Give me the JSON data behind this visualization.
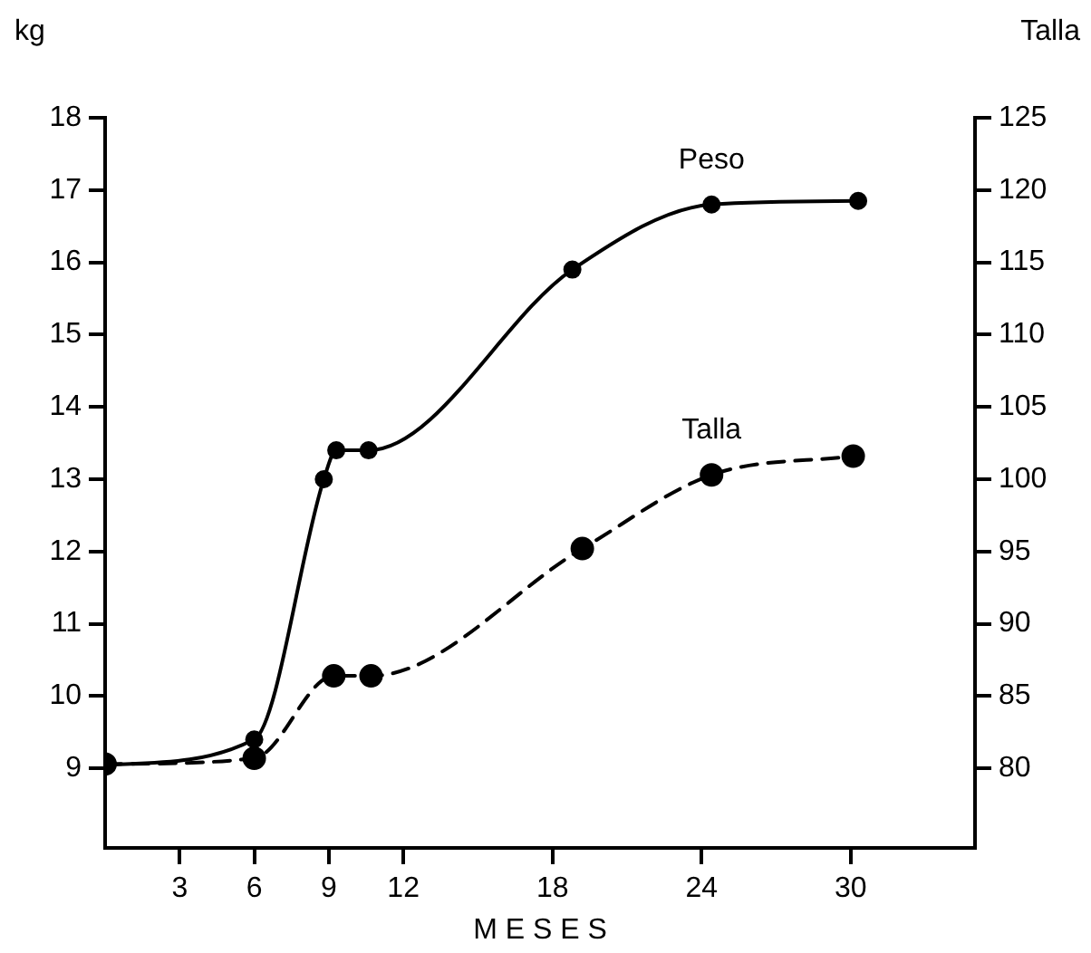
{
  "chart_data": {
    "type": "line",
    "xlabel": "M E S E S",
    "ylabel": "kg",
    "y2label": "Talla",
    "xlim": [
      0,
      35
    ],
    "xticks": [
      3,
      6,
      9,
      12,
      18,
      24,
      30
    ],
    "ylim": [
      7.9,
      18
    ],
    "yticks": [
      9,
      10,
      11,
      12,
      13,
      14,
      15,
      16,
      17,
      18
    ],
    "y2lim": [
      74.5,
      125
    ],
    "y2ticks": [
      80,
      85,
      90,
      95,
      100,
      105,
      110,
      115,
      120,
      125
    ],
    "grid": false,
    "legend": false,
    "marker": "circle",
    "series": [
      {
        "name": "Peso",
        "color": "#000000",
        "line_style": "solid",
        "x": [
          0,
          6,
          8.8,
          9.3,
          10.6,
          18.8,
          24.4,
          30.3
        ],
        "values": [
          9.05,
          9.4,
          13,
          13.4,
          13.4,
          15.9,
          16.8,
          16.85
        ]
      },
      {
        "name": "Talla",
        "color": "#000000",
        "line_style": "dashed",
        "axis": "y2",
        "x": [
          0,
          6,
          9.2,
          10.7,
          19.2,
          24.4,
          30.1
        ],
        "values": [
          80.3,
          80.7,
          86.4,
          86.4,
          95.2,
          100.3,
          101.6
        ]
      }
    ]
  }
}
